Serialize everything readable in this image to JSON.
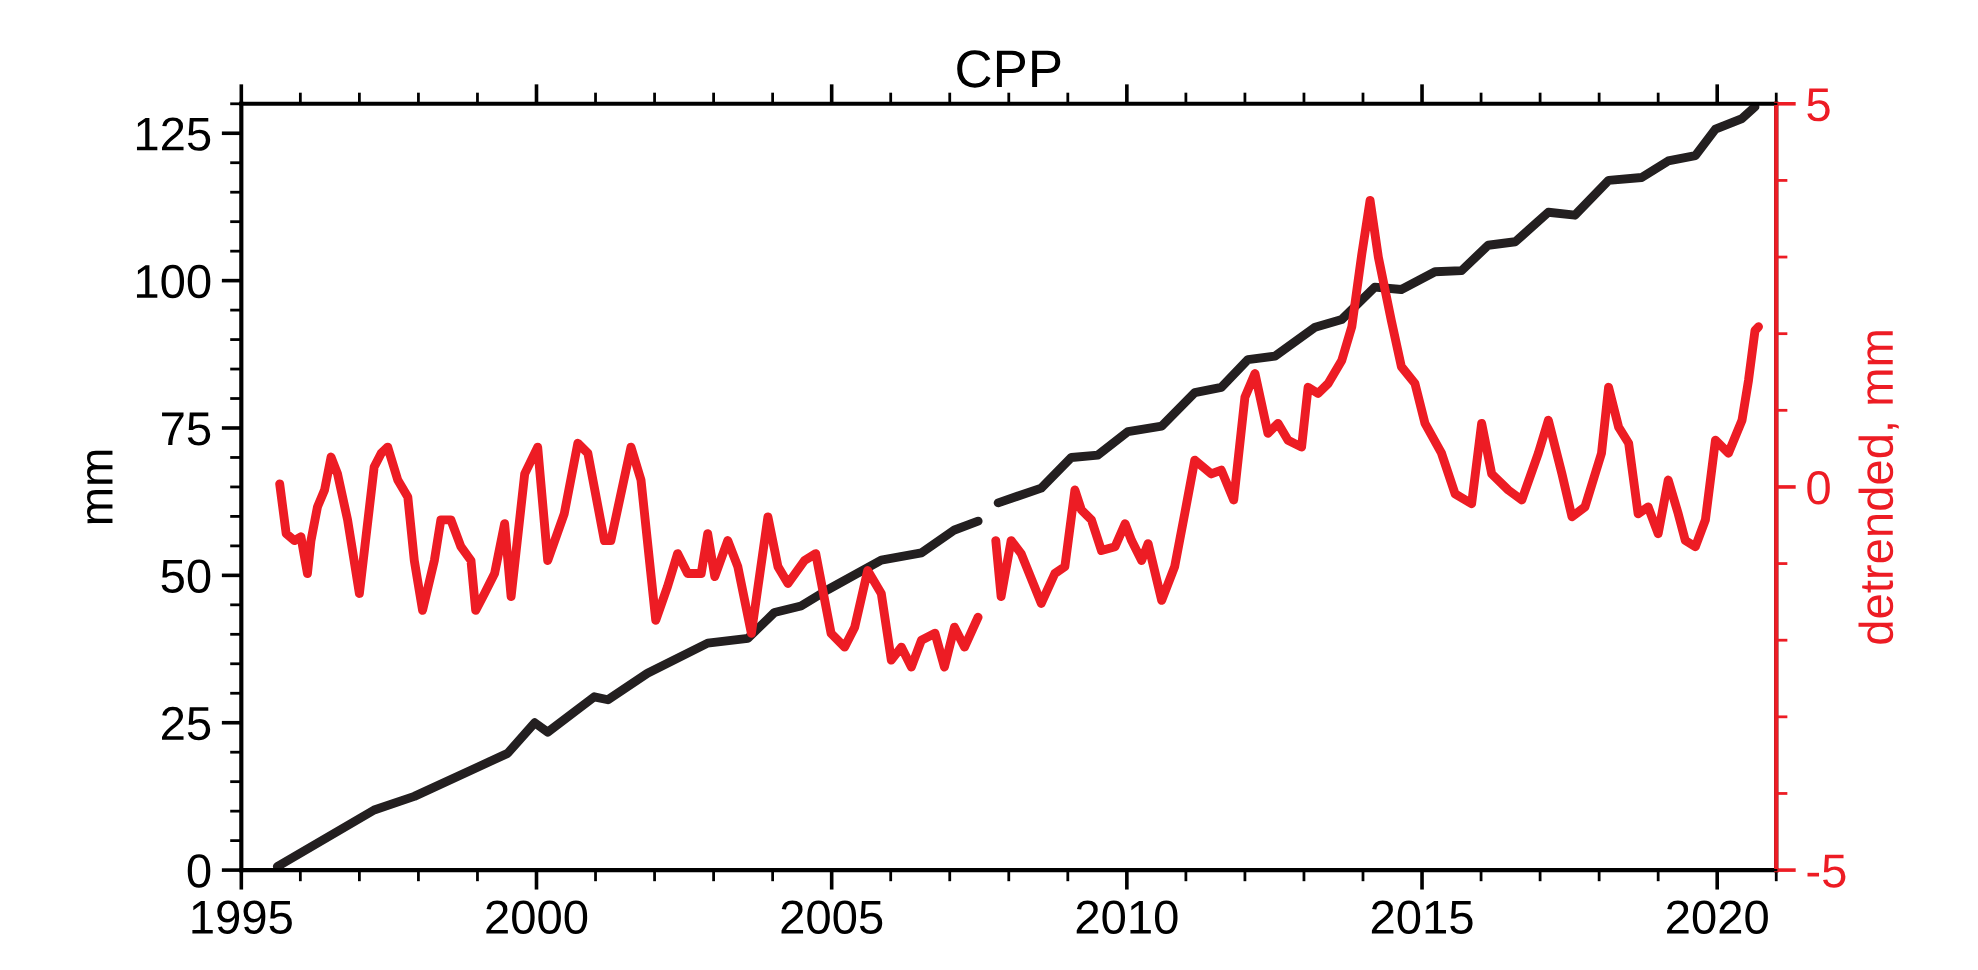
{
  "chart_data": {
    "type": "line",
    "title": "CPP",
    "ylabel": "mm",
    "y2label": "detrended, mm",
    "xlim": [
      1995,
      2021
    ],
    "xticks": [
      1995,
      {
        "value": 1996,
        "label": null
      },
      {
        "value": 1997,
        "label": null
      },
      {
        "value": 1998,
        "label": null
      },
      {
        "value": 1999,
        "label": null
      },
      2000,
      {
        "value": 2001,
        "label": null
      },
      {
        "value": 2002,
        "label": null
      },
      {
        "value": 2003,
        "label": null
      },
      {
        "value": 2004,
        "label": null
      },
      2005,
      {
        "value": 2006,
        "label": null
      },
      {
        "value": 2007,
        "label": null
      },
      {
        "value": 2008,
        "label": null
      },
      {
        "value": 2009,
        "label": null
      },
      2010,
      {
        "value": 2011,
        "label": null
      },
      {
        "value": 2012,
        "label": null
      },
      {
        "value": 2013,
        "label": null
      },
      {
        "value": 2014,
        "label": null
      },
      2015,
      {
        "value": 2016,
        "label": null
      },
      {
        "value": 2017,
        "label": null
      },
      {
        "value": 2018,
        "label": null
      },
      {
        "value": 2019,
        "label": null
      },
      2020,
      {
        "value": 2021,
        "label": null
      }
    ],
    "ylim": [
      0,
      130
    ],
    "yticks": [
      0,
      {
        "value": 5,
        "label": null
      },
      {
        "value": 10,
        "label": null
      },
      {
        "value": 15,
        "label": null
      },
      {
        "value": 20,
        "label": null
      },
      25,
      {
        "value": 30,
        "label": null
      },
      {
        "value": 35,
        "label": null
      },
      {
        "value": 40,
        "label": null
      },
      {
        "value": 45,
        "label": null
      },
      50,
      {
        "value": 55,
        "label": null
      },
      {
        "value": 60,
        "label": null
      },
      {
        "value": 65,
        "label": null
      },
      {
        "value": 70,
        "label": null
      },
      75,
      {
        "value": 80,
        "label": null
      },
      {
        "value": 85,
        "label": null
      },
      {
        "value": 90,
        "label": null
      },
      {
        "value": 95,
        "label": null
      },
      100,
      {
        "value": 105,
        "label": null
      },
      {
        "value": 110,
        "label": null
      },
      {
        "value": 115,
        "label": null
      },
      {
        "value": 120,
        "label": null
      },
      125,
      {
        "value": 130,
        "label": null
      }
    ],
    "y2lim": [
      -5,
      5
    ],
    "y2ticks": [
      -5,
      {
        "value": -4,
        "label": null
      },
      {
        "value": -3,
        "label": null
      },
      {
        "value": -2,
        "label": null
      },
      {
        "value": -1,
        "label": null
      },
      0,
      {
        "value": 1,
        "label": null
      },
      {
        "value": 2,
        "label": null
      },
      {
        "value": 3,
        "label": null
      },
      {
        "value": 4,
        "label": null
      },
      5
    ],
    "grid": false,
    "legend": false,
    "marker": "none",
    "line_style": "solid",
    "series": [
      {
        "color": "#231f20",
        "axis": "y",
        "x": [
          1995.61,
          1997.25,
          1997.93,
          1999.51,
          1999.97,
          2000.19,
          2000.98,
          2001.21,
          2001.88,
          2002.9,
          2003.58,
          2004.03,
          2004.48,
          2004.94,
          2005.84,
          2006.52,
          2007.08,
          2007.48,
          2007.65,
          2007.82,
          2008.55,
          2009.06,
          2009.51,
          2010.02,
          2010.59,
          2011.15,
          2011.6,
          2012.05,
          2012.51,
          2013.19,
          2013.64,
          2014.2,
          2014.65,
          2015.22,
          2015.67,
          2016.12,
          2016.58,
          2017.14,
          2017.59,
          2018.16,
          2018.72,
          2019.17,
          2019.63,
          2019.97,
          2020.42,
          2020.64
        ],
        "values": [
          0.6,
          10.2,
          12.5,
          19.8,
          25.0,
          23.4,
          29.4,
          28.9,
          33.4,
          38.5,
          39.3,
          43.7,
          44.8,
          47.6,
          52.6,
          53.8,
          57.7,
          59.2,
          null,
          62.3,
          64.8,
          70.0,
          70.4,
          74.4,
          75.3,
          81.0,
          81.9,
          86.6,
          87.2,
          92.1,
          93.4,
          98.9,
          98.5,
          101.5,
          101.7,
          106.0,
          106.6,
          111.6,
          111.1,
          117.0,
          117.5,
          120.3,
          121.2,
          125.7,
          127.5,
          129.5
        ]
      },
      {
        "color": "#ed1c24",
        "axis": "y2",
        "x": [
          1995.65,
          1995.76,
          1995.9,
          1996.01,
          1996.12,
          1996.18,
          1996.29,
          1996.41,
          1996.52,
          1996.63,
          1996.8,
          1997.0,
          1997.25,
          1997.37,
          1997.48,
          1997.65,
          1997.82,
          1997.93,
          1998.07,
          1998.27,
          1998.38,
          1998.55,
          1998.72,
          1998.89,
          1998.97,
          1999.12,
          1999.29,
          1999.46,
          1999.57,
          1999.8,
          2000.02,
          2000.19,
          2000.47,
          2000.7,
          2000.87,
          2001.15,
          2001.26,
          2001.6,
          2001.77,
          2002.02,
          2002.22,
          2002.39,
          2002.56,
          2002.79,
          2002.9,
          2003.02,
          2003.24,
          2003.41,
          2003.64,
          2003.92,
          2004.09,
          2004.26,
          2004.54,
          2004.73,
          2004.99,
          2005.22,
          2005.39,
          2005.61,
          2005.84,
          2006.01,
          2006.18,
          2006.35,
          2006.52,
          2006.75,
          2006.91,
          2007.08,
          2007.25,
          2007.48,
          2007.63,
          2007.78,
          2007.87,
          2008.04,
          2008.21,
          2008.55,
          2008.78,
          2008.95,
          2009.12,
          2009.23,
          2009.4,
          2009.57,
          2009.8,
          2009.97,
          2010.08,
          2010.25,
          2010.36,
          2010.59,
          2010.81,
          2010.98,
          2011.15,
          2011.43,
          2011.6,
          2011.81,
          2012.0,
          2012.17,
          2012.39,
          2012.56,
          2012.73,
          2012.96,
          2013.07,
          2013.24,
          2013.41,
          2013.64,
          2013.81,
          2013.98,
          2014.12,
          2014.26,
          2014.48,
          2014.65,
          2014.88,
          2015.05,
          2015.33,
          2015.56,
          2015.84,
          2016.01,
          2016.18,
          2016.46,
          2016.69,
          2016.97,
          2017.14,
          2017.37,
          2017.54,
          2017.76,
          2018.04,
          2018.16,
          2018.33,
          2018.5,
          2018.66,
          2018.83,
          2019.0,
          2019.17,
          2019.34,
          2019.46,
          2019.63,
          2019.8,
          2019.97,
          2020.19,
          2020.42,
          2020.53,
          2020.64,
          2020.7
        ],
        "values": [
          0.04,
          -0.61,
          -0.7,
          -0.65,
          -1.13,
          -0.7,
          -0.26,
          -0.04,
          0.39,
          0.17,
          -0.43,
          -1.39,
          0.26,
          0.44,
          0.52,
          0.09,
          -0.13,
          -0.96,
          -1.61,
          -0.96,
          -0.43,
          -0.43,
          -0.78,
          -0.96,
          -1.61,
          -1.39,
          -1.13,
          -0.48,
          -1.43,
          0.17,
          0.52,
          -0.96,
          -0.35,
          0.57,
          0.44,
          -0.7,
          -0.7,
          0.52,
          0.09,
          -1.74,
          -1.3,
          -0.87,
          -1.13,
          -1.13,
          -0.61,
          -1.17,
          -0.7,
          -1.04,
          -1.91,
          -0.39,
          -1.04,
          -1.26,
          -0.96,
          -0.87,
          -1.91,
          -2.09,
          -1.83,
          -1.09,
          -1.39,
          -2.26,
          -2.09,
          -2.35,
          -2.0,
          -1.91,
          -2.35,
          -1.83,
          -2.09,
          -1.7,
          null,
          -0.7,
          -1.43,
          -0.7,
          -0.87,
          -1.52,
          -1.13,
          -1.04,
          -0.04,
          -0.3,
          -0.43,
          -0.83,
          -0.78,
          -0.48,
          -0.7,
          -0.96,
          -0.74,
          -1.48,
          -1.04,
          -0.35,
          0.35,
          0.17,
          0.22,
          -0.17,
          1.17,
          1.48,
          0.7,
          0.83,
          0.61,
          0.52,
          1.3,
          1.22,
          1.35,
          1.65,
          2.09,
          3.04,
          3.74,
          3.0,
          2.17,
          1.57,
          1.35,
          0.83,
          0.44,
          -0.09,
          -0.22,
          0.83,
          0.17,
          -0.04,
          -0.17,
          0.44,
          0.87,
          0.17,
          -0.39,
          -0.26,
          0.44,
          1.3,
          0.78,
          0.57,
          -0.35,
          -0.26,
          -0.61,
          0.09,
          -0.35,
          -0.7,
          -0.78,
          -0.43,
          0.61,
          0.44,
          0.87,
          1.39,
          2.04,
          2.09
        ]
      }
    ]
  }
}
